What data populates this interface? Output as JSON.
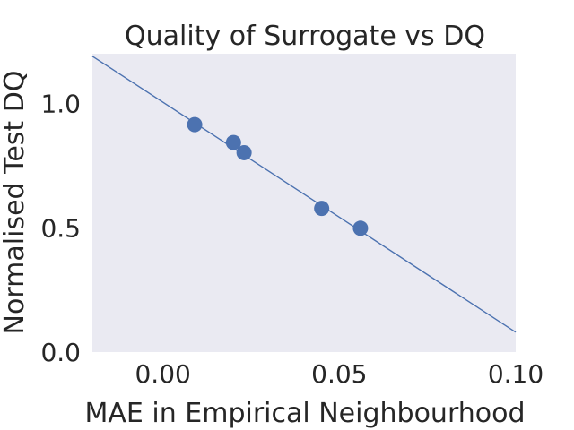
{
  "chart_data": {
    "type": "scatter",
    "title": "Quality of Surrogate vs DQ",
    "xlabel": "MAE in Empirical Neighbourhood",
    "ylabel": "Normalised Test DQ",
    "xlim": [
      -0.02,
      0.1
    ],
    "ylim": [
      0,
      1.2
    ],
    "xticks": [
      0.0,
      0.05,
      0.1
    ],
    "xtick_labels": [
      "0.00",
      "0.05",
      "0.10"
    ],
    "yticks": [
      0.0,
      0.5,
      1.0
    ],
    "ytick_labels": [
      "0.0",
      "0.5",
      "1.0"
    ],
    "grid": false,
    "points": [
      {
        "x": 0.009,
        "y": 0.915
      },
      {
        "x": 0.02,
        "y": 0.843
      },
      {
        "x": 0.023,
        "y": 0.802
      },
      {
        "x": 0.045,
        "y": 0.578
      },
      {
        "x": 0.056,
        "y": 0.498
      }
    ],
    "fit_line": {
      "x": [
        -0.02,
        0.1
      ],
      "y": [
        1.19,
        0.08
      ]
    },
    "colors": {
      "plot_background": "#eaeaf2",
      "marker": "#4c72b0",
      "line": "#4c72b0"
    }
  }
}
